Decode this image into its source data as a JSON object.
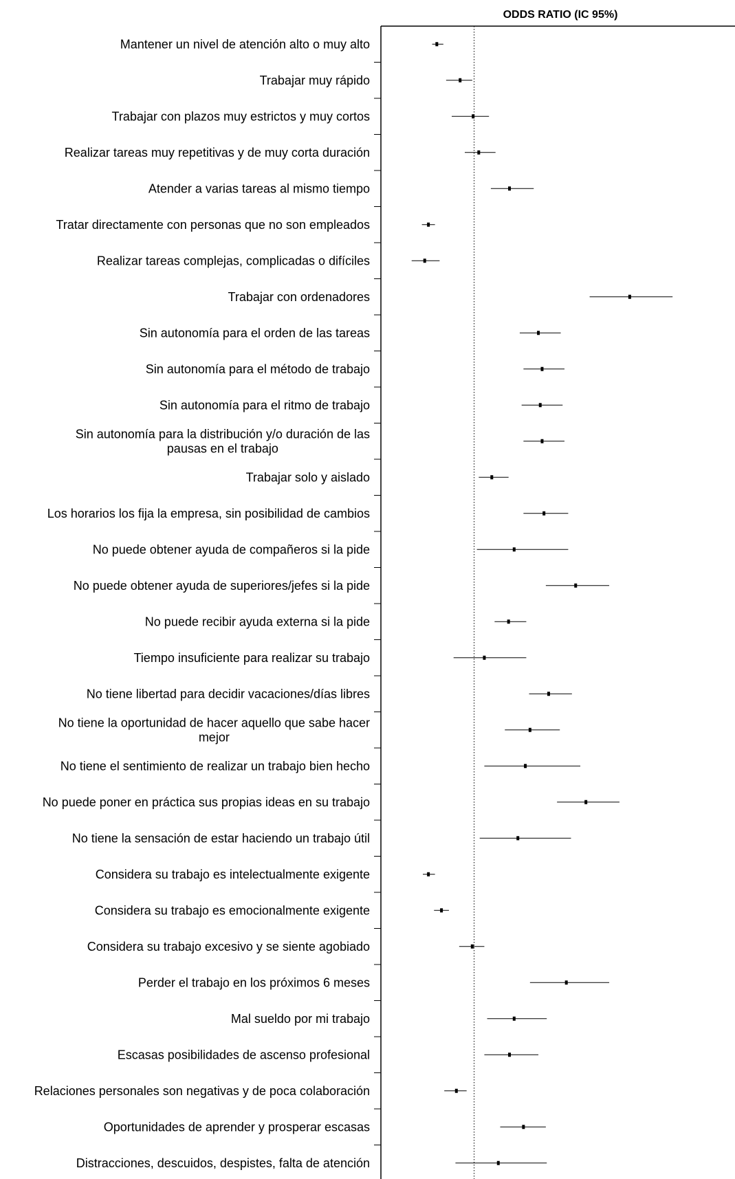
{
  "chart_data": {
    "type": "forest",
    "title": "ODDS RATIO (IC 95%)",
    "xlabel": "",
    "ylabel": "",
    "x_axis_ticks": "none",
    "grid": false,
    "reference_line": {
      "value": 1,
      "style": "dotted"
    },
    "x_range": [
      0,
      3.8
    ],
    "rows": [
      {
        "label": [
          "Mantener un nivel de atención alto o muy alto"
        ],
        "or": 0.6,
        "ci": [
          0.55,
          0.67
        ]
      },
      {
        "label": [
          "Trabajar muy rápido"
        ],
        "or": 0.85,
        "ci": [
          0.7,
          0.98
        ]
      },
      {
        "label": [
          "Trabajar con plazos muy estrictos y muy cortos"
        ],
        "or": 0.99,
        "ci": [
          0.76,
          1.16
        ]
      },
      {
        "label": [
          "Realizar tareas muy repetitivas y de muy corta duración"
        ],
        "or": 1.05,
        "ci": [
          0.9,
          1.23
        ]
      },
      {
        "label": [
          "Atender a varias tareas al mismo tiempo"
        ],
        "or": 1.38,
        "ci": [
          1.18,
          1.64
        ]
      },
      {
        "label": [
          "Tratar directamente con personas que no son empleados"
        ],
        "or": 0.51,
        "ci": [
          0.44,
          0.58
        ]
      },
      {
        "label": [
          "Realizar tareas complejas, complicadas o difíciles"
        ],
        "or": 0.47,
        "ci": [
          0.33,
          0.63
        ]
      },
      {
        "label": [
          "Trabajar con ordenadores"
        ],
        "or": 2.67,
        "ci": [
          2.24,
          3.13
        ]
      },
      {
        "label": [
          "Sin autonomía para el orden de las tareas"
        ],
        "or": 1.69,
        "ci": [
          1.49,
          1.93
        ]
      },
      {
        "label": [
          "Sin autonomía para el método de trabajo"
        ],
        "or": 1.73,
        "ci": [
          1.53,
          1.97
        ]
      },
      {
        "label": [
          "Sin autonomía para el ritmo de trabajo"
        ],
        "or": 1.71,
        "ci": [
          1.51,
          1.95
        ]
      },
      {
        "label": [
          "Sin autonomía para la distribución y/o duración de las",
          "pausas en el trabajo"
        ],
        "or": 1.73,
        "ci": [
          1.53,
          1.97
        ]
      },
      {
        "label": [
          "Trabajar solo y aislado"
        ],
        "or": 1.19,
        "ci": [
          1.05,
          1.37
        ]
      },
      {
        "label": [
          "Los horarios los fija la empresa, sin posibilidad de cambios"
        ],
        "or": 1.75,
        "ci": [
          1.53,
          2.01
        ]
      },
      {
        "label": [
          "No puede obtener ayuda de compañeros si la pide"
        ],
        "or": 1.43,
        "ci": [
          1.03,
          2.01
        ]
      },
      {
        "label": [
          "No puede obtener ayuda de superiores/jefes si la pide"
        ],
        "or": 2.09,
        "ci": [
          1.77,
          2.45
        ]
      },
      {
        "label": [
          "No puede recibir ayuda externa si la pide"
        ],
        "or": 1.37,
        "ci": [
          1.22,
          1.56
        ]
      },
      {
        "label": [
          "Tiempo insuficiente para realizar su trabajo"
        ],
        "or": 1.11,
        "ci": [
          0.78,
          1.56
        ]
      },
      {
        "label": [
          "No tiene libertad para decidir vacaciones/días libres"
        ],
        "or": 1.8,
        "ci": [
          1.59,
          2.05
        ]
      },
      {
        "label": [
          "No tiene la oportunidad de hacer aquello que sabe hacer",
          "mejor"
        ],
        "or": 1.6,
        "ci": [
          1.33,
          1.92
        ]
      },
      {
        "label": [
          "No tiene el sentimiento de realizar un trabajo bien hecho"
        ],
        "or": 1.55,
        "ci": [
          1.11,
          2.14
        ]
      },
      {
        "label": [
          "No puede poner en práctica sus propias ideas en su trabajo"
        ],
        "or": 2.2,
        "ci": [
          1.89,
          2.56
        ]
      },
      {
        "label": [
          "No tiene la sensación de estar haciendo un trabajo útil"
        ],
        "or": 1.47,
        "ci": [
          1.06,
          2.04
        ]
      },
      {
        "label": [
          "Considera su trabajo es intelectualmente exigente"
        ],
        "or": 0.51,
        "ci": [
          0.45,
          0.58
        ]
      },
      {
        "label": [
          "Considera su trabajo es emocionalmente exigente"
        ],
        "or": 0.65,
        "ci": [
          0.57,
          0.73
        ]
      },
      {
        "label": [
          "Considera su trabajo excesivo y se siente agobiado"
        ],
        "or": 0.98,
        "ci": [
          0.84,
          1.11
        ]
      },
      {
        "label": [
          "Perder el trabajo en los próximos 6 meses"
        ],
        "or": 1.99,
        "ci": [
          1.6,
          2.45
        ]
      },
      {
        "label": [
          "Mal sueldo por mi trabajo"
        ],
        "or": 1.43,
        "ci": [
          1.14,
          1.78
        ]
      },
      {
        "label": [
          "Escasas posibilidades de ascenso profesional"
        ],
        "or": 1.38,
        "ci": [
          1.11,
          1.69
        ]
      },
      {
        "label": [
          "Relaciones personales son negativas y de poca colaboración"
        ],
        "or": 0.81,
        "ci": [
          0.68,
          0.92
        ]
      },
      {
        "label": [
          "Oportunidades de aprender y prosperar escasas"
        ],
        "or": 1.53,
        "ci": [
          1.28,
          1.77
        ]
      },
      {
        "label": [
          "Distracciones, descuidos, despistes, falta de atención"
        ],
        "or": 1.26,
        "ci": [
          0.8,
          1.78
        ]
      }
    ]
  }
}
